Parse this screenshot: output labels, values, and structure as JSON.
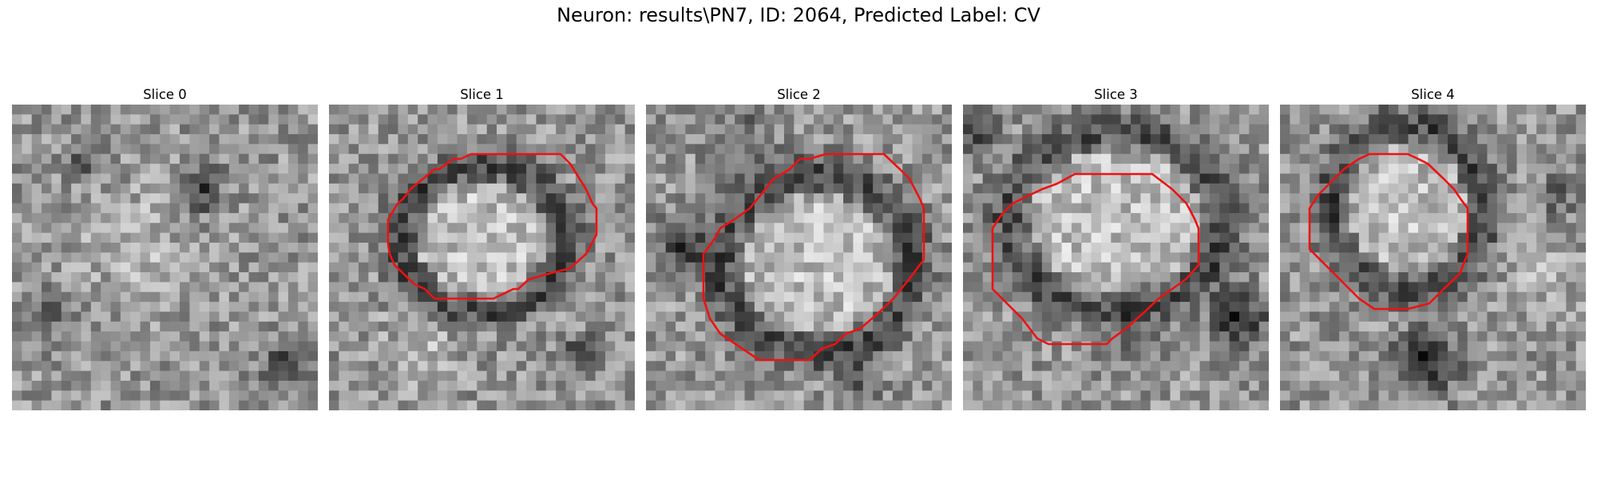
{
  "figure": {
    "title": "Neuron: results\\PN7, ID: 2064, Predicted Label: CV",
    "outline_color": "#ee1111"
  },
  "slices": [
    {
      "label": "Slice 0",
      "has_outline": false
    },
    {
      "label": "Slice 1",
      "has_outline": true
    },
    {
      "label": "Slice 2",
      "has_outline": true
    },
    {
      "label": "Slice 3",
      "has_outline": true
    },
    {
      "label": "Slice 4",
      "has_outline": true
    }
  ]
}
